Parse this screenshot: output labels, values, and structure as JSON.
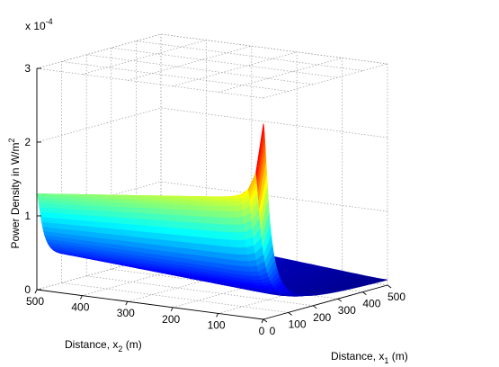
{
  "chart_data": {
    "type": "surface",
    "zlabel": "Power Density in W/m",
    "zlabel_sup": "2",
    "xlabel_x2_main": "Distance, x",
    "xlabel_x2_sub": "2",
    "xlabel_x2_unit": " (m)",
    "xlabel_x1_main": "Distance, x",
    "xlabel_x1_sub": "1",
    "xlabel_x1_unit": " (m)",
    "z_multiplier_base": "x 10",
    "z_multiplier_exp": "-4",
    "x1_ticks": [
      0,
      100,
      200,
      300,
      400,
      500
    ],
    "x2_ticks": [
      0,
      100,
      200,
      300,
      400,
      500
    ],
    "z_ticks": [
      0,
      1,
      2,
      3
    ],
    "x1_range": [
      0,
      500
    ],
    "x2_range": [
      0,
      500
    ],
    "z_range": [
      0,
      3
    ],
    "grid": true,
    "colormap": "jet",
    "surface_samples": [
      {
        "x1": 0,
        "x2": 0,
        "z": 2.65
      },
      {
        "x1": 0,
        "x2": 50,
        "z": 1.75
      },
      {
        "x1": 0,
        "x2": 100,
        "z": 1.6
      },
      {
        "x1": 0,
        "x2": 300,
        "z": 1.48
      },
      {
        "x1": 0,
        "x2": 500,
        "z": 1.3
      },
      {
        "x1": 50,
        "x2": 0,
        "z": 0.55
      },
      {
        "x1": 100,
        "x2": 500,
        "z": 0.3
      },
      {
        "x1": 500,
        "x2": 0,
        "z": 0.05
      },
      {
        "x1": 500,
        "x2": 500,
        "z": 0.0
      }
    ]
  }
}
